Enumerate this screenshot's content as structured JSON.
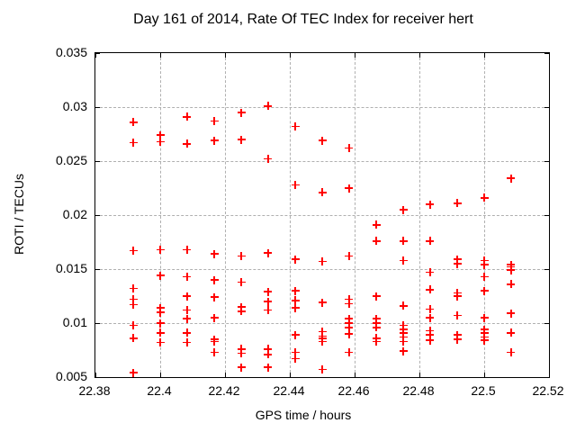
{
  "chart_data": {
    "type": "scatter",
    "title": "Day 161 of 2014, Rate Of TEC Index for receiver hert",
    "xlabel": "GPS time / hours",
    "ylabel": "ROTI / TECUs",
    "xlim": [
      22.38,
      22.52
    ],
    "ylim": [
      0.005,
      0.035
    ],
    "x_ticks": [
      22.38,
      22.4,
      22.42,
      22.44,
      22.46,
      22.48,
      22.5,
      22.52
    ],
    "x_tick_labels": [
      "22.38",
      "22.4",
      "22.42",
      "22.44",
      "22.46",
      "22.48",
      "22.5",
      "22.52"
    ],
    "y_ticks": [
      0.005,
      0.01,
      0.015,
      0.02,
      0.025,
      0.03,
      0.035
    ],
    "y_tick_labels": [
      "0.005",
      "0.01",
      "0.015",
      "0.02",
      "0.025",
      "0.03",
      "0.035"
    ],
    "grid": true,
    "legend": "none",
    "marker": "plus",
    "marker_color": "#ff0000",
    "grid_color": "#b0b0b0",
    "points": [
      {
        "x": 22.3917,
        "y": [
          0.0286,
          0.0267,
          0.0167,
          0.0132,
          0.0122,
          0.0117,
          0.0098,
          0.0086,
          0.0054
        ]
      },
      {
        "x": 22.4,
        "y": [
          0.0274,
          0.0268,
          0.0168,
          0.0144,
          0.0114,
          0.011,
          0.01,
          0.0091,
          0.0082
        ]
      },
      {
        "x": 22.4083,
        "y": [
          0.0291,
          0.0266,
          0.0168,
          0.0143,
          0.0125,
          0.0112,
          0.0104,
          0.0091,
          0.0082
        ]
      },
      {
        "x": 22.4167,
        "y": [
          0.0287,
          0.0269,
          0.0164,
          0.014,
          0.0124,
          0.0105,
          0.0085,
          0.0083,
          0.0073
        ]
      },
      {
        "x": 22.425,
        "y": [
          0.0295,
          0.027,
          0.0162,
          0.0138,
          0.0115,
          0.0111,
          0.0076,
          0.0072,
          0.0059
        ]
      },
      {
        "x": 22.4333,
        "y": [
          0.0301,
          0.0252,
          0.0165,
          0.0129,
          0.012,
          0.0112,
          0.0076,
          0.0071,
          0.0059
        ]
      },
      {
        "x": 22.4417,
        "y": [
          0.0282,
          0.0228,
          0.0159,
          0.013,
          0.0121,
          0.0114,
          0.0089,
          0.0073,
          0.0067
        ]
      },
      {
        "x": 22.45,
        "y": [
          0.0269,
          0.0221,
          0.0157,
          0.0119,
          0.0092,
          0.0088,
          0.0086,
          0.0083,
          0.0057
        ]
      },
      {
        "x": 22.4583,
        "y": [
          0.0262,
          0.0225,
          0.0162,
          0.0122,
          0.0118,
          0.0104,
          0.01,
          0.0096,
          0.009,
          0.0073
        ]
      },
      {
        "x": 22.4667,
        "y": [
          0.0191,
          0.0176,
          0.0125,
          0.0104,
          0.01,
          0.0096,
          0.0086,
          0.0083
        ]
      },
      {
        "x": 22.475,
        "y": [
          0.0205,
          0.0176,
          0.0158,
          0.0116,
          0.0098,
          0.0094,
          0.0091,
          0.0087,
          0.0083,
          0.0074
        ]
      },
      {
        "x": 22.4833,
        "y": [
          0.021,
          0.0176,
          0.0147,
          0.0131,
          0.0113,
          0.0105,
          0.0093,
          0.0089,
          0.0084
        ]
      },
      {
        "x": 22.4917,
        "y": [
          0.0211,
          0.0159,
          0.0155,
          0.0128,
          0.0125,
          0.0107,
          0.0089,
          0.0085
        ]
      },
      {
        "x": 22.5,
        "y": [
          0.0216,
          0.0158,
          0.0154,
          0.0143,
          0.013,
          0.0105,
          0.0094,
          0.0091,
          0.0087,
          0.0084
        ]
      },
      {
        "x": 22.5083,
        "y": [
          0.0234,
          0.0154,
          0.0152,
          0.0149,
          0.0136,
          0.0109,
          0.0091,
          0.0073
        ]
      }
    ]
  }
}
